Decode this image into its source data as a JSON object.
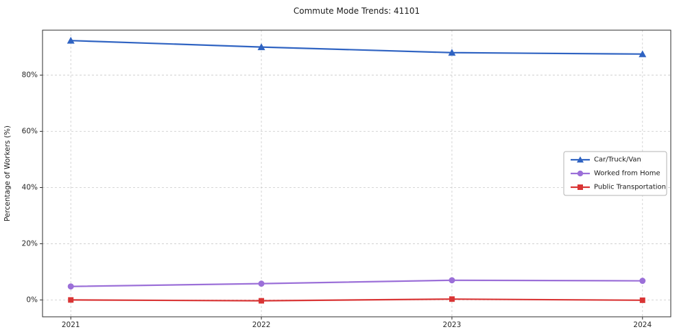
{
  "chart_data": {
    "type": "line",
    "title": "Commute Mode Trends: 41101",
    "xlabel": "",
    "ylabel": "Percentage of Workers (%)",
    "x": [
      2021,
      2022,
      2023,
      2024
    ],
    "x_tick_labels": [
      "2021",
      "2022",
      "2023",
      "2024"
    ],
    "y_ticks": [
      0,
      20,
      40,
      60,
      80
    ],
    "y_tick_labels": [
      "0%",
      "20%",
      "40%",
      "60%",
      "80%"
    ],
    "ylim": [
      -6,
      96
    ],
    "grid": true,
    "grid_style": "dashed",
    "legend_position": "center-right",
    "series": [
      {
        "name": "Car/Truck/Van",
        "marker": "triangle",
        "color": "#2f63c2",
        "values": [
          92.3,
          90.0,
          88.0,
          87.5
        ]
      },
      {
        "name": "Worked from Home",
        "marker": "circle",
        "color": "#9b6fd8",
        "values": [
          4.8,
          5.8,
          7.0,
          6.8
        ]
      },
      {
        "name": "Public Transportation",
        "marker": "square",
        "color": "#d93434",
        "values": [
          0.0,
          -0.3,
          0.3,
          -0.1
        ]
      }
    ]
  }
}
